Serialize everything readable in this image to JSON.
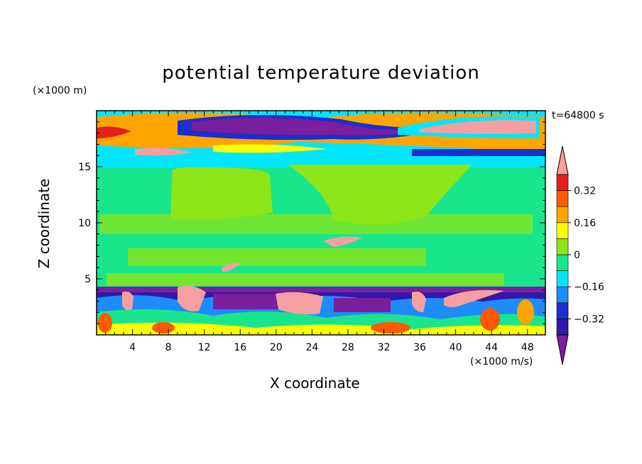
{
  "chart_data": {
    "type": "heatmap",
    "title": "potential temperature deviation",
    "y_unit_note": "(×1000 m)",
    "x_unit_note": "(×1000 m/s)",
    "time_label": "t=64800 s",
    "xlabel": "X coordinate",
    "ylabel": "Z coordinate",
    "xlim": [
      0,
      50
    ],
    "ylim": [
      0,
      20
    ],
    "x_ticks": [
      4,
      8,
      12,
      16,
      20,
      24,
      28,
      32,
      36,
      40,
      44,
      48
    ],
    "x_tick_labels": [
      "4",
      "8",
      "12",
      "16",
      "20",
      "24",
      "28",
      "32",
      "36",
      "40",
      "44",
      "48"
    ],
    "y_ticks": [
      5,
      10,
      15
    ],
    "y_tick_labels": [
      "5",
      "10",
      "15"
    ],
    "colorbar": {
      "levels": [
        -0.4,
        -0.32,
        -0.24,
        -0.16,
        -0.08,
        0,
        0.08,
        0.16,
        0.24,
        0.32,
        0.4
      ],
      "tick_values": [
        0.32,
        0.16,
        0,
        -0.16,
        -0.32
      ],
      "tick_labels": [
        "0.32",
        "0.16",
        "0",
        "−0.16",
        "−0.32"
      ],
      "colors": [
        "#7a1f9e",
        "#3218a8",
        "#1a2fd0",
        "#1e8cff",
        "#00e6ff",
        "#19e68c",
        "#8ce619",
        "#ffff00",
        "#ffa500",
        "#ff5a00",
        "#e61e1e",
        "#f5a0a0"
      ],
      "extend": "both"
    }
  }
}
